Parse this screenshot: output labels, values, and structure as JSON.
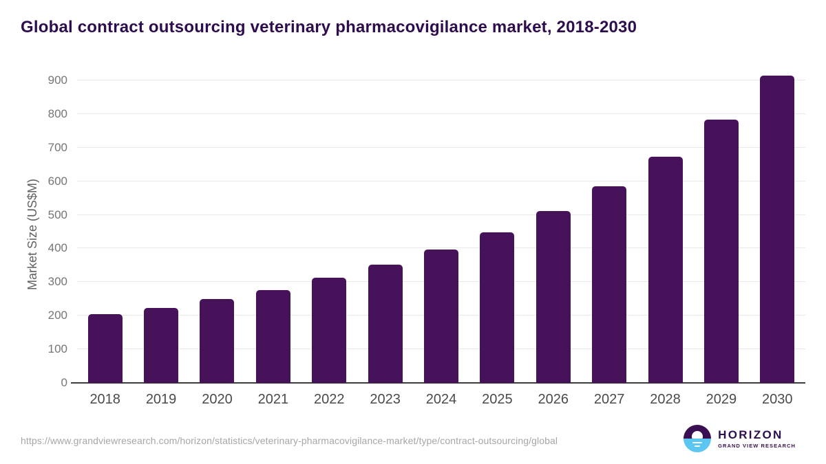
{
  "title": "Global contract outsourcing veterinary pharmacovigilance market, 2018-2030",
  "chart_data": {
    "type": "bar",
    "categories": [
      "2018",
      "2019",
      "2020",
      "2021",
      "2022",
      "2023",
      "2024",
      "2025",
      "2026",
      "2027",
      "2028",
      "2029",
      "2030"
    ],
    "values": [
      205,
      224,
      249,
      277,
      312,
      351,
      396,
      449,
      511,
      586,
      674,
      783,
      914
    ],
    "title": "Global contract outsourcing veterinary pharmacovigilance market, 2018-2030",
    "xlabel": "",
    "ylabel": "Market Size (US$M)",
    "ylim": [
      0,
      900
    ],
    "yticks": [
      0,
      100,
      200,
      300,
      400,
      500,
      600,
      700,
      800,
      900
    ],
    "grid": "horizontal",
    "legend": "none",
    "bar_color": "#46125A"
  },
  "colors": {
    "title_text": "#2E0D4E",
    "bar": "#46125A",
    "gridline": "#E9E9E9",
    "baseline": "#3C3C3C",
    "ytick_text": "#757575",
    "xtick_text": "#4A4A4A",
    "axis_title_text": "#616161",
    "url_text": "#A6A6A6",
    "logo_purple": "#3A1053",
    "logo_blue": "#5BC6F1"
  },
  "footer": {
    "source_url": "https://www.grandviewresearch.com/horizon/statistics/veterinary-pharmacovigilance-market/type/contract-outsourcing/global",
    "logo": {
      "name": "HORIZON",
      "subtitle": "GRAND VIEW RESEARCH"
    }
  }
}
